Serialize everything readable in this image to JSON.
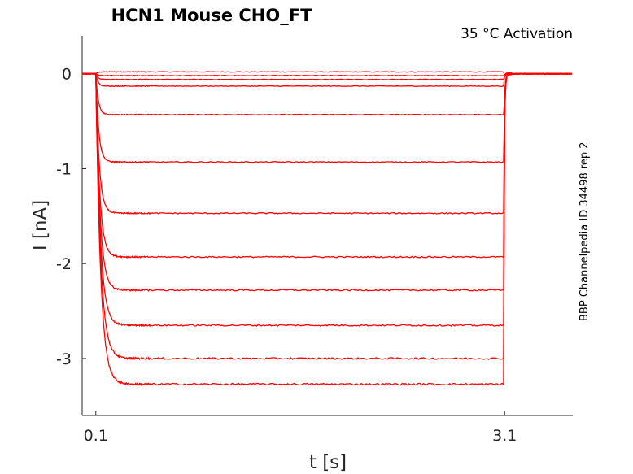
{
  "chart_data": {
    "type": "line",
    "title": "HCN1  Mouse  CHO_FT",
    "annotation": "35 °C  Activation",
    "side_note": "BBP Channelpedia ID 34498 rep 2",
    "xlabel": "t [s]",
    "ylabel": "I [nA]",
    "x_ticks": [
      0.1,
      3.1
    ],
    "x_tick_labels": [
      "0.1",
      "3.1"
    ],
    "y_ticks": [
      0,
      -1,
      -2,
      -3
    ],
    "y_tick_labels": [
      "0",
      "-1",
      "-2",
      "-3"
    ],
    "xlim": [
      0.0,
      3.6
    ],
    "ylim": [
      -3.6,
      0.4
    ],
    "grid": false,
    "color": "#ff0000",
    "step_start": 0.1,
    "step_end": 3.1,
    "series": [
      {
        "steady_state": 0.02
      },
      {
        "steady_state": -0.02
      },
      {
        "steady_state": -0.06
      },
      {
        "steady_state": -0.13
      },
      {
        "steady_state": -0.43
      },
      {
        "steady_state": -0.93
      },
      {
        "steady_state": -1.47
      },
      {
        "steady_state": -1.93
      },
      {
        "steady_state": -2.28
      },
      {
        "steady_state": -2.65
      },
      {
        "steady_state": -3.0
      },
      {
        "steady_state": -3.27
      }
    ]
  }
}
